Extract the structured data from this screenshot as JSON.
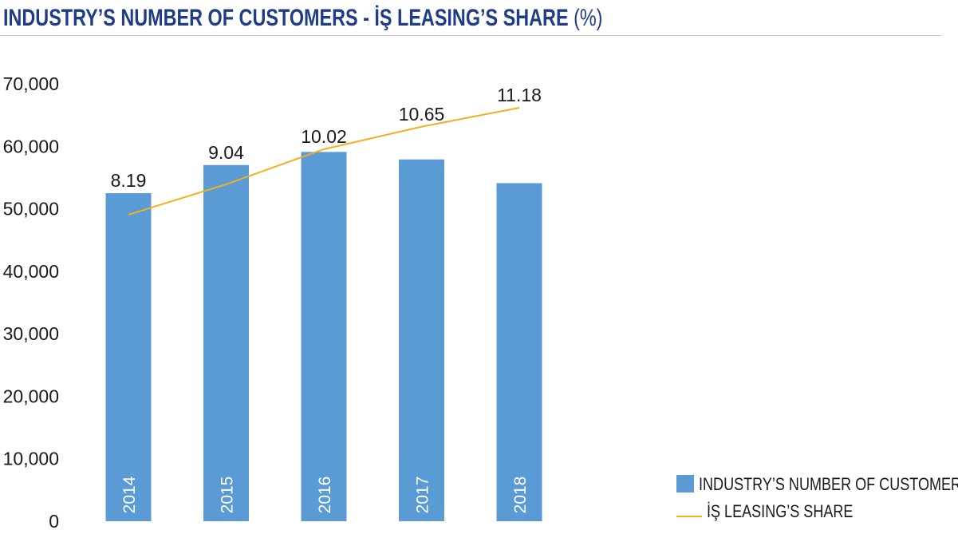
{
  "header": {
    "title": "INDUSTRY’S NUMBER OF CUSTOMERS - İŞ LEASING’S SHARE",
    "title_suffix": "(%)"
  },
  "colors": {
    "title": "#1f3c87",
    "bars": "#5b9bd5",
    "line": "#f2b01e",
    "rule": "#c9c9c9"
  },
  "chart_data": {
    "type": "bar",
    "title": "INDUSTRY’S NUMBER OF CUSTOMERS - İŞ LEASING’S SHARE (%)",
    "categories": [
      "2014",
      "2015",
      "2016",
      "2017",
      "2018"
    ],
    "y_ticks": [
      "0",
      "10,000",
      "20,000",
      "30,000",
      "40,000",
      "50,000",
      "60,000",
      "70,000"
    ],
    "ylim": [
      0,
      70000
    ],
    "grid": false,
    "legend_placement": "bottom-right",
    "series": [
      {
        "name": "INDUSTRY’S NUMBER OF CUSTOMERS",
        "type": "bar",
        "values": [
          52500,
          57000,
          59100,
          57900,
          54100
        ]
      },
      {
        "name": "İŞ LEASING’S SHARE",
        "type": "line",
        "values": [
          8.19,
          9.04,
          10.02,
          10.65,
          11.18
        ],
        "labels": [
          "8.19",
          "9.04",
          "10.02",
          "10.65",
          "11.18"
        ]
      }
    ]
  }
}
